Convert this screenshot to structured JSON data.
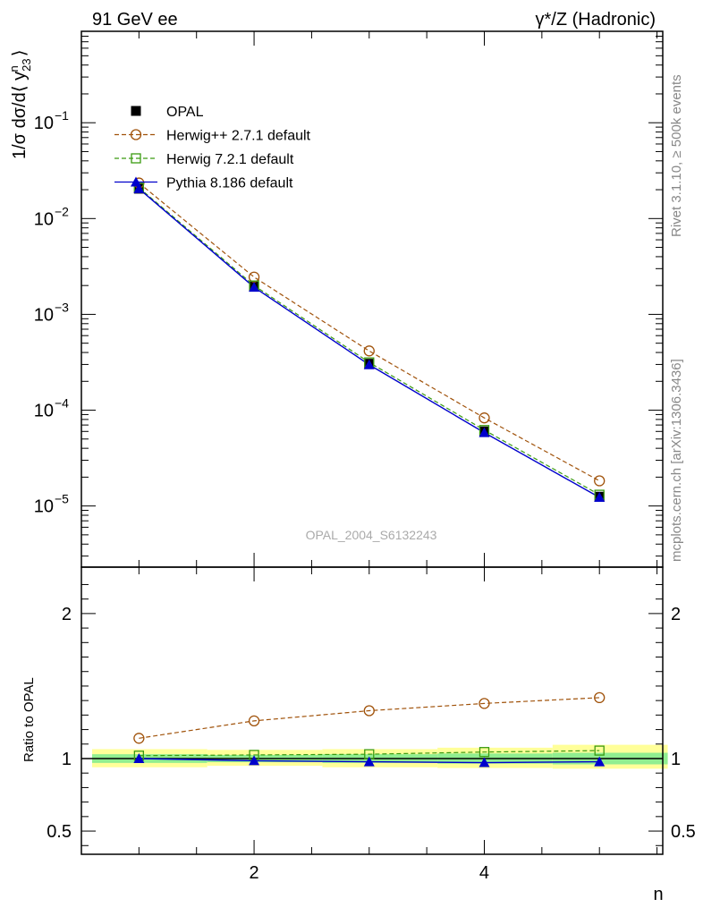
{
  "header": {
    "left_title": "91 GeV ee",
    "right_title": "γ*/Z (Hadronic)"
  },
  "side_labels": {
    "rivet": "Rivet 3.1.10, ≥ 500k events",
    "mcplots": "mcplots.cern.ch [arXiv:1306.3436]"
  },
  "watermark": "OPAL_2004_S6132243",
  "chart_data": [
    {
      "type": "line",
      "title": "91 GeV ee",
      "ylabel": "1/σ dσ/d⟨ y23^n ⟩",
      "yscale": "log",
      "xlim": [
        0.5,
        5.55
      ],
      "ylim": [
        2.3e-06,
        0.9
      ],
      "x": [
        1,
        2,
        3,
        4,
        5
      ],
      "yticks": [
        {
          "value": 1e-05,
          "label": "10",
          "exp": "−5"
        },
        {
          "value": 0.0001,
          "label": "10",
          "exp": "−4"
        },
        {
          "value": 0.001,
          "label": "10",
          "exp": "−3"
        },
        {
          "value": 0.01,
          "label": "10",
          "exp": "−2"
        },
        {
          "value": 0.1,
          "label": "10",
          "exp": "−1"
        }
      ],
      "legend_position": "top-left",
      "series": [
        {
          "name": "OPAL",
          "color": "#000000",
          "marker": "square-filled",
          "style": "none",
          "values": [
            0.0205,
            0.00195,
            0.000305,
            6e-05,
            1.25e-05
          ]
        },
        {
          "name": "Herwig++ 2.7.1 default",
          "color": "#a0520a",
          "marker": "circle-open",
          "style": "dashed",
          "values": [
            0.0235,
            0.00245,
            0.000415,
            8.3e-05,
            1.83e-05
          ]
        },
        {
          "name": "Herwig 7.2.1 default",
          "color": "#3a9a10",
          "marker": "square-open",
          "style": "dashed",
          "values": [
            0.021,
            0.002,
            0.000315,
            6.2e-05,
            1.31e-05
          ]
        },
        {
          "name": "Pythia 8.186 default",
          "color": "#0000cc",
          "marker": "triangle-filled",
          "style": "solid",
          "values": [
            0.0205,
            0.00192,
            0.000298,
            5.83e-05,
            1.23e-05
          ]
        }
      ]
    },
    {
      "type": "line",
      "ylabel": "Ratio to OPAL",
      "xlabel": "n",
      "xlim": [
        0.5,
        5.55
      ],
      "ylim": [
        0.34,
        2.32
      ],
      "yticks": [
        0.5,
        1,
        2
      ],
      "xticks": [
        2,
        4
      ],
      "x": [
        1,
        2,
        3,
        4,
        5
      ],
      "bands": {
        "bins": [
          [
            0.5,
            1.5
          ],
          [
            1.5,
            2.5
          ],
          [
            2.5,
            3.5
          ],
          [
            3.5,
            4.5
          ],
          [
            4.5,
            5.5
          ]
        ],
        "inner": [
          [
            0.97,
            1.03
          ],
          [
            0.975,
            1.025
          ],
          [
            0.97,
            1.03
          ],
          [
            0.965,
            1.035
          ],
          [
            0.96,
            1.04
          ]
        ],
        "outer": [
          [
            0.94,
            1.065
          ],
          [
            0.95,
            1.06
          ],
          [
            0.94,
            1.065
          ],
          [
            0.935,
            1.075
          ],
          [
            0.93,
            1.095
          ]
        ],
        "inner_color": "#90ee90",
        "outer_color": "#ffff99"
      },
      "series": [
        {
          "name": "Herwig++ 2.7.1 default",
          "color": "#a0520a",
          "marker": "circle-open",
          "style": "dashed",
          "values": [
            1.14,
            1.26,
            1.33,
            1.38,
            1.42
          ]
        },
        {
          "name": "Herwig 7.2.1 default",
          "color": "#3a9a10",
          "marker": "square-open",
          "style": "dashed",
          "values": [
            1.02,
            1.025,
            1.03,
            1.045,
            1.055
          ]
        },
        {
          "name": "Pythia 8.186 default",
          "color": "#0000cc",
          "marker": "triangle-filled",
          "style": "solid",
          "values": [
            1.0,
            0.985,
            0.978,
            0.972,
            0.978
          ]
        }
      ]
    }
  ]
}
